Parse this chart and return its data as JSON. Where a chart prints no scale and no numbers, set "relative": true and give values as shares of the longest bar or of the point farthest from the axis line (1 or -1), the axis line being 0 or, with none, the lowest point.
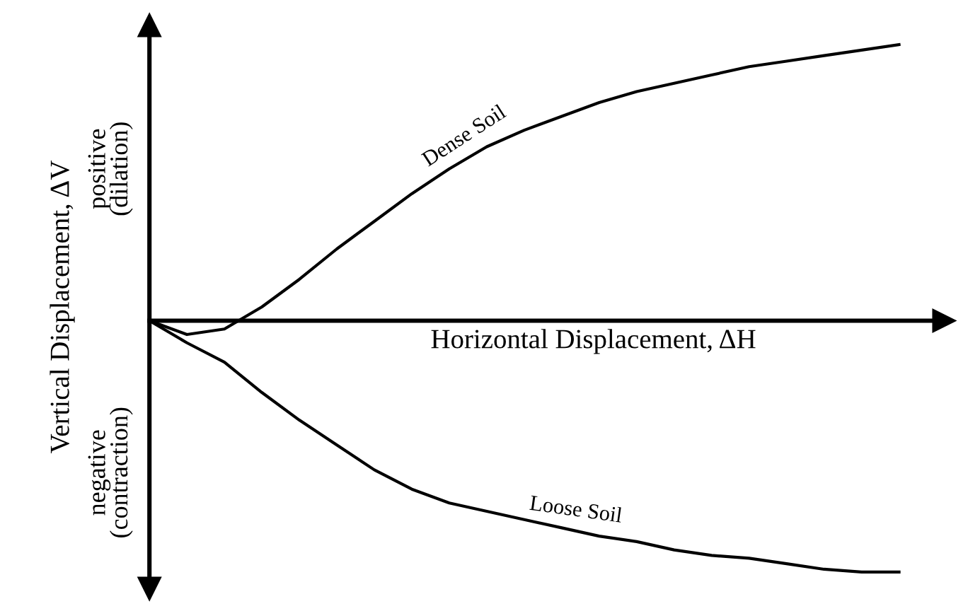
{
  "chart_data": {
    "type": "line",
    "relative": true,
    "tick_labels": false,
    "xlabel": "Horizontal Displacement, ΔH",
    "ylabel": "Vertical Displacement, ΔV",
    "annotations": [
      "positive\n(dilation)",
      "negative\n(contraction)"
    ],
    "categories": [
      null,
      null,
      null,
      null,
      null,
      null,
      null,
      null,
      null,
      null,
      null,
      null,
      null,
      null,
      null,
      null,
      null,
      null,
      null,
      null,
      null
    ],
    "series": [
      {
        "name": "Dense Soil",
        "color": "#000000",
        "values": [
          0,
          -0.05,
          -0.03,
          0.05,
          0.15,
          0.26,
          0.36,
          0.46,
          0.55,
          0.63,
          0.69,
          0.74,
          0.79,
          0.83,
          0.86,
          0.89,
          0.92,
          0.94,
          0.96,
          0.98,
          1
        ]
      },
      {
        "name": "Loose Soil",
        "color": "#000000",
        "values": [
          0,
          -0.08,
          -0.15,
          -0.26,
          -0.36,
          -0.45,
          -0.54,
          -0.61,
          -0.66,
          -0.69,
          -0.72,
          -0.75,
          -0.78,
          -0.8,
          -0.83,
          -0.85,
          -0.86,
          -0.88,
          -0.9,
          -0.91,
          -0.91
        ]
      }
    ]
  }
}
